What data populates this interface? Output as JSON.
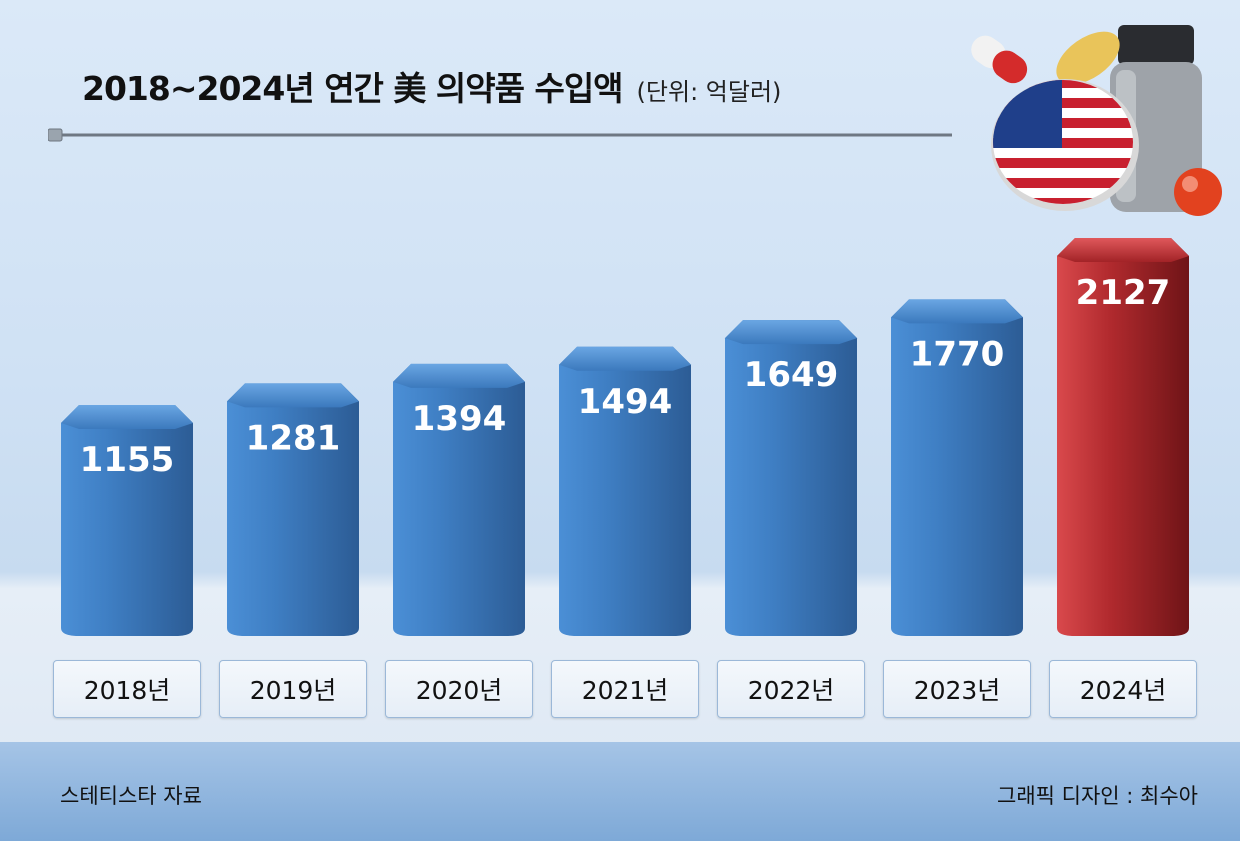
{
  "header": {
    "title": "2018~2024년 연간 美 의약품 수입액",
    "unit": "(단위: 억달러)"
  },
  "footer": {
    "source": "스테티스타 자료",
    "credit": "그래픽 디자인 : 최수아"
  },
  "decoration": {
    "icon": "usa-flag-pill-bottle-icon"
  },
  "colors": {
    "bar_blue": "#3f7fc4",
    "bar_red": "#b12a2e",
    "footer": "#7ea9d7"
  },
  "chart_data": {
    "type": "bar",
    "title": "2018~2024년 연간 美 의약품 수입액",
    "unit": "(단위: 억달러)",
    "categories": [
      "2018년",
      "2019년",
      "2020년",
      "2021년",
      "2022년",
      "2023년",
      "2024년"
    ],
    "values": [
      1155,
      1281,
      1394,
      1494,
      1649,
      1770,
      2127
    ],
    "highlight_index": 6,
    "xlabel": "",
    "ylabel": ""
  }
}
